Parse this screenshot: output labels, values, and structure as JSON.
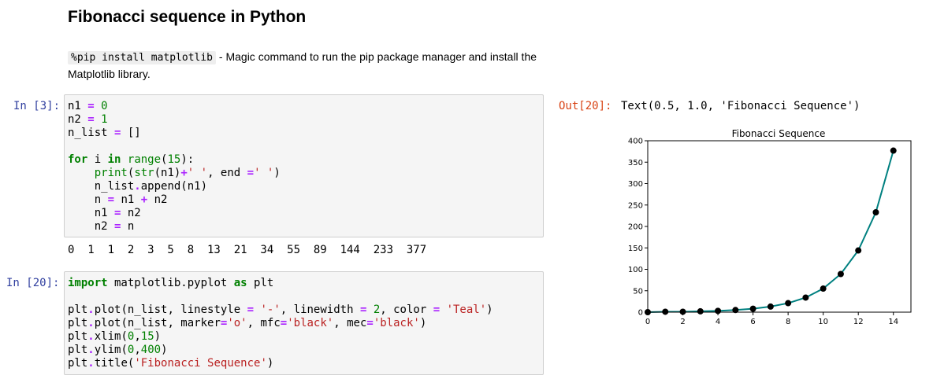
{
  "notebook": {
    "title": "Fibonacci sequence in Python",
    "markdown": {
      "code": "%pip install matplotlib",
      "text": " - Magic command to run the pip package manager and install the Matplotlib library."
    },
    "cell1": {
      "prompt": "In [3]:",
      "output": "0  1  1  2  3  5  8  13  21  34  55  89  144  233  377"
    },
    "cell2": {
      "prompt": "In [20]:"
    },
    "output": {
      "prompt": "Out[20]:",
      "text": "Text(0.5, 1.0, 'Fibonacci Sequence')"
    }
  },
  "colors": {
    "line": "#008080",
    "marker": "#000000"
  },
  "chart_data": {
    "type": "line",
    "title": "Fibonacci Sequence",
    "xlabel": "",
    "ylabel": "",
    "x": [
      0,
      1,
      2,
      3,
      4,
      5,
      6,
      7,
      8,
      9,
      10,
      11,
      12,
      13,
      14
    ],
    "series": [
      {
        "values": [
          0,
          1,
          1,
          2,
          3,
          5,
          8,
          13,
          21,
          34,
          55,
          89,
          144,
          233,
          377
        ]
      }
    ],
    "xlim": [
      0,
      15
    ],
    "ylim": [
      0,
      400
    ],
    "xticks": [
      0,
      2,
      4,
      6,
      8,
      10,
      12,
      14
    ],
    "yticks": [
      0,
      50,
      100,
      150,
      200,
      250,
      300,
      350,
      400
    ],
    "grid": false
  }
}
